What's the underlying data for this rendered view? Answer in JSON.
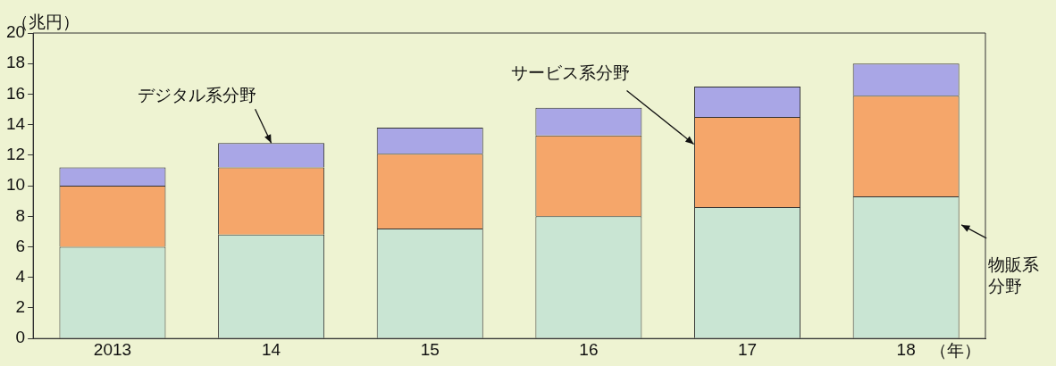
{
  "chart_data": {
    "type": "bar",
    "stacked": true,
    "ylabel": "（兆円）",
    "xlabel": "（年）",
    "categories": [
      "2013",
      "14",
      "15",
      "16",
      "17",
      "18"
    ],
    "series": [
      {
        "name": "物販系分野",
        "color": "#c9e5d3",
        "values": [
          6.0,
          6.8,
          7.2,
          8.0,
          8.6,
          9.3
        ]
      },
      {
        "name": "サービス系分野",
        "color": "#f5a66a",
        "values": [
          4.0,
          4.4,
          4.9,
          5.3,
          5.9,
          6.6
        ]
      },
      {
        "name": "デジタル系分野",
        "color": "#a9a6e6",
        "values": [
          1.2,
          1.6,
          1.7,
          1.8,
          2.0,
          2.1
        ]
      }
    ],
    "ylim": [
      0,
      20
    ],
    "yticks": [
      0,
      2,
      4,
      6,
      8,
      10,
      12,
      14,
      16,
      18,
      20
    ],
    "grid": false,
    "legend": false
  }
}
